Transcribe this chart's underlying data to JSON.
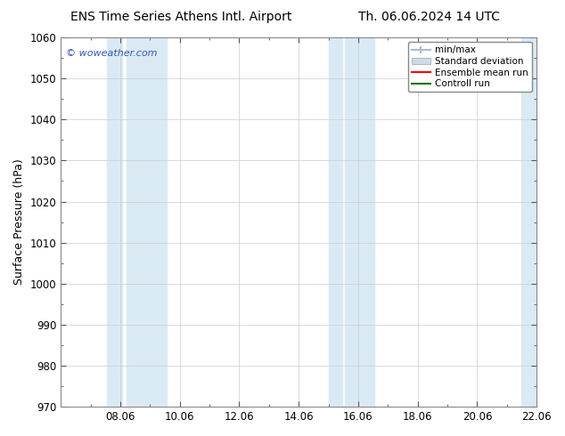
{
  "title_left": "ENS Time Series Athens Intl. Airport",
  "title_right": "Th. 06.06.2024 14 UTC",
  "ylabel": "Surface Pressure (hPa)",
  "ylim": [
    970,
    1060
  ],
  "yticks": [
    970,
    980,
    990,
    1000,
    1010,
    1020,
    1030,
    1040,
    1050,
    1060
  ],
  "xtick_labels": [
    "08.06",
    "10.06",
    "12.06",
    "14.06",
    "16.06",
    "18.06",
    "20.06",
    "22.06"
  ],
  "xtick_positions": [
    2,
    4,
    6,
    8,
    10,
    12,
    14,
    16
  ],
  "xlim": [
    0,
    16
  ],
  "watermark": "© woweather.com",
  "watermark_color": "#3355bb",
  "background_color": "#ffffff",
  "plot_bg_color": "#ffffff",
  "shaded_bands": [
    {
      "x_start": 1.5,
      "x_end": 2.0,
      "color": "#ddeef8"
    },
    {
      "x_start": 2.0,
      "x_end": 3.5,
      "color": "#ddeef8"
    },
    {
      "x_start": 9.0,
      "x_end": 9.5,
      "color": "#ddeef8"
    },
    {
      "x_start": 9.5,
      "x_end": 10.5,
      "color": "#ddeef8"
    },
    {
      "x_start": 15.5,
      "x_end": 16.0,
      "color": "#ddeef8"
    }
  ],
  "legend_items": [
    {
      "label": "min/max",
      "color": "#aaccdd",
      "type": "minmax"
    },
    {
      "label": "Standard deviation",
      "color": "#ccdde8",
      "type": "stddev"
    },
    {
      "label": "Ensemble mean run",
      "color": "#ff0000",
      "type": "line"
    },
    {
      "label": "Controll run",
      "color": "#00aa00",
      "type": "line"
    }
  ],
  "font_family": "DejaVu Sans",
  "title_fontsize": 10,
  "tick_fontsize": 8.5,
  "ylabel_fontsize": 9,
  "legend_fontsize": 7.5
}
